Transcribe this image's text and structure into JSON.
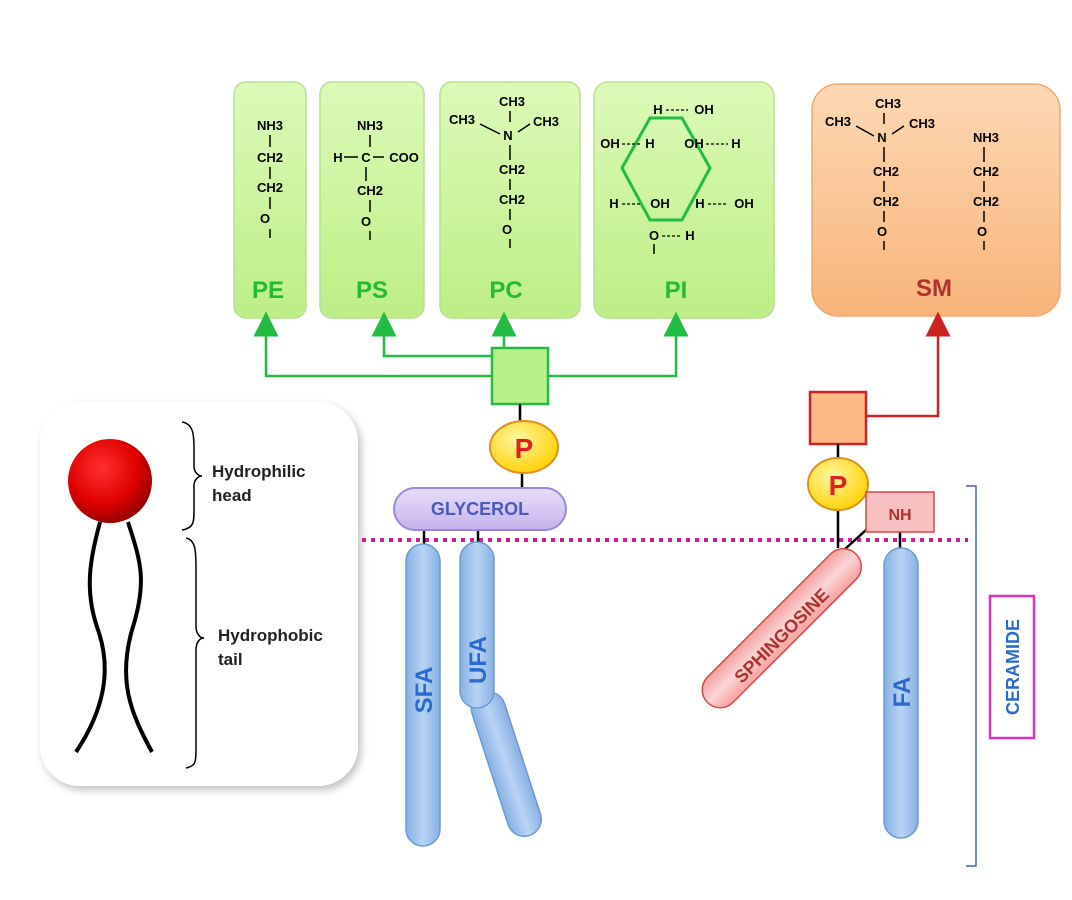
{
  "headgroups": {
    "pe": {
      "label": "PE",
      "formula": [
        "NH3",
        "CH2",
        "CH2",
        "O"
      ]
    },
    "ps": {
      "label": "PS",
      "formula": [
        "NH3",
        "H",
        "C",
        "COO",
        "CH2",
        "O"
      ]
    },
    "pc": {
      "label": "PC",
      "formula": [
        "CH3",
        "CH3",
        "N",
        "CH3",
        "CH2",
        "CH2",
        "O"
      ]
    },
    "pi": {
      "label": "PI",
      "formula": [
        "H",
        "OH",
        "OH",
        "H",
        "OH",
        "H",
        "H",
        "OH",
        "H",
        "OH",
        "O",
        "H"
      ]
    },
    "sm": {
      "label": "SM",
      "formula_choline": [
        "CH3",
        "CH3",
        "N",
        "CH3",
        "CH2",
        "CH2",
        "O"
      ],
      "formula_amine": [
        "NH3",
        "CH2",
        "CH2",
        "O"
      ]
    }
  },
  "phosphate_label": "P",
  "glycerol_label": "GLYCEROL",
  "nh_label": "NH",
  "sphingosine_label": "SPHINGOSINE",
  "sfa_label": "SFA",
  "ufa_label": "UFA",
  "fa_label": "FA",
  "ceramide_label": "CERAMIDE",
  "legend": {
    "head_label_1": "Hydrophilic",
    "head_label_2": "head",
    "tail_label_1": "Hydrophobic",
    "tail_label_2": "tail"
  },
  "colors": {
    "green_fill": "#c9f59a",
    "green_stroke": "#22bb44",
    "green_text": "#22bb33",
    "orange_fill": "#fbc79b",
    "sm_text": "#b03030",
    "red_line": "#cc2222",
    "blue_fill": "#a8c8ee",
    "blue_text": "#2a6ad0",
    "pink_fill": "#f8c8c8",
    "pink_stroke": "#d84848",
    "glycerol_fill": "#d6c8f2",
    "glycerol_stroke": "#9a88d8",
    "p_fill": "#ffe030",
    "p_stroke": "#e09020",
    "p_text": "#e02020",
    "membrane_dots": "#cc1a9a",
    "ceramide_stroke": "#dd33bb",
    "bracket": "#4466aa"
  }
}
